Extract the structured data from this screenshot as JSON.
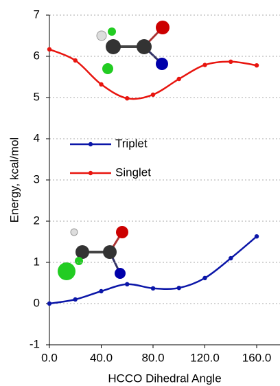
{
  "chart_data": {
    "type": "line",
    "x_label": "HCCO Dihedral Angle",
    "y_label": "Energy, kcal/mol",
    "x": [
      0,
      20,
      40,
      60,
      80,
      100,
      120,
      140,
      160
    ],
    "series": [
      {
        "name": "Triplet",
        "color": "#0b16a8",
        "values": [
          0,
          0.1,
          0.3,
          0.47,
          0.37,
          0.38,
          0.62,
          1.1,
          1.63
        ]
      },
      {
        "name": "Singlet",
        "color": "#e8150f",
        "values": [
          6.17,
          5.9,
          5.32,
          4.98,
          5.07,
          5.45,
          5.79,
          5.87,
          5.78
        ]
      }
    ],
    "xlim": [
      0,
      178
    ],
    "xticks": [
      {
        "value": 0,
        "label": "0.0"
      },
      {
        "value": 40,
        "label": "40.0"
      },
      {
        "value": 80,
        "label": "80.0"
      },
      {
        "value": 120,
        "label": "120.0"
      },
      {
        "value": 160,
        "label": "160.0"
      }
    ],
    "ylim": [
      -1,
      7
    ],
    "yticks": [
      -1,
      0,
      1,
      2,
      3,
      4,
      5,
      6,
      7
    ],
    "grid": true
  }
}
